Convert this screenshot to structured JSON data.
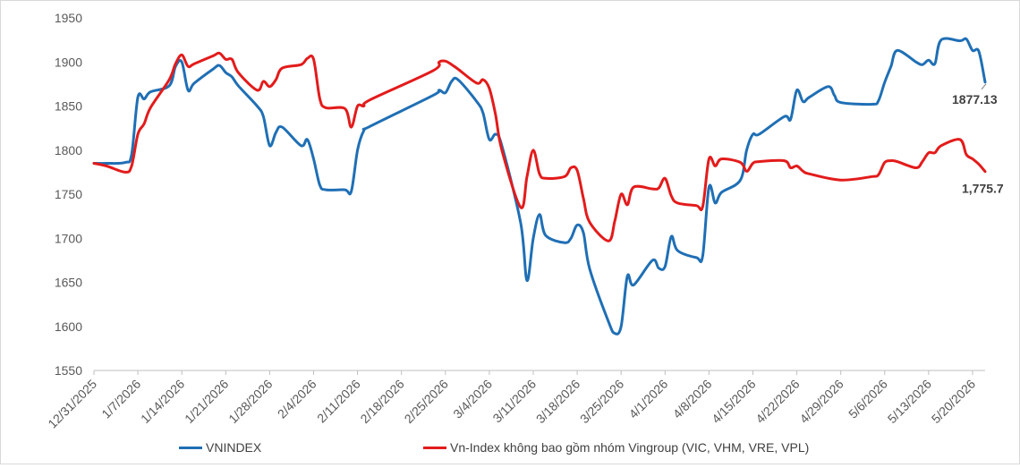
{
  "chart_data": {
    "type": "line",
    "title": "",
    "xlabel": "",
    "ylabel": "",
    "ylim": [
      1550,
      1950
    ],
    "yticks": [
      1550,
      1600,
      1650,
      1700,
      1750,
      1800,
      1850,
      1900,
      1950
    ],
    "xticks": [
      "12/31/2025",
      "1/7/2026",
      "1/14/2026",
      "1/21/2026",
      "1/28/2026",
      "2/4/2026",
      "2/11/2026",
      "2/18/2026",
      "2/25/2026",
      "3/4/2026",
      "3/11/2026",
      "3/18/2026",
      "3/25/2026",
      "4/1/2026",
      "4/8/2026",
      "4/15/2026",
      "4/22/2026",
      "4/29/2026",
      "5/6/2026",
      "5/13/2026",
      "5/20/2026"
    ],
    "grid": false,
    "legend_position": "bottom",
    "series": [
      {
        "name": "VNINDEX",
        "color": "#1f6fb5",
        "end_label": "1877.13",
        "points": [
          [
            "2025-12-31",
            1785
          ],
          [
            "2026-01-02",
            1785
          ],
          [
            "2026-01-05",
            1786
          ],
          [
            "2026-01-06",
            1795
          ],
          [
            "2026-01-07",
            1860
          ],
          [
            "2026-01-08",
            1858
          ],
          [
            "2026-01-09",
            1866
          ],
          [
            "2026-01-12",
            1873
          ],
          [
            "2026-01-13",
            1895
          ],
          [
            "2026-01-14",
            1900
          ],
          [
            "2026-01-15",
            1868
          ],
          [
            "2026-01-16",
            1876
          ],
          [
            "2026-01-19",
            1892
          ],
          [
            "2026-01-20",
            1896
          ],
          [
            "2026-01-21",
            1888
          ],
          [
            "2026-01-22",
            1883
          ],
          [
            "2026-01-23",
            1873
          ],
          [
            "2026-01-26",
            1850
          ],
          [
            "2026-01-27",
            1838
          ],
          [
            "2026-01-28",
            1805
          ],
          [
            "2026-01-29",
            1820
          ],
          [
            "2026-01-30",
            1826
          ],
          [
            "2026-02-02",
            1805
          ],
          [
            "2026-02-03",
            1812
          ],
          [
            "2026-02-04",
            1790
          ],
          [
            "2026-02-05",
            1760
          ],
          [
            "2026-02-06",
            1755
          ],
          [
            "2026-02-09",
            1755
          ],
          [
            "2026-02-10",
            1753
          ],
          [
            "2026-02-11",
            1800
          ],
          [
            "2026-02-12",
            1822
          ],
          [
            "2026-02-13",
            1827
          ],
          [
            "2026-02-23",
            1862
          ],
          [
            "2026-02-24",
            1868
          ],
          [
            "2026-02-25",
            1865
          ],
          [
            "2026-02-26",
            1878
          ],
          [
            "2026-02-27",
            1880
          ],
          [
            "2026-03-02",
            1855
          ],
          [
            "2026-03-03",
            1842
          ],
          [
            "2026-03-04",
            1812
          ],
          [
            "2026-03-05",
            1818
          ],
          [
            "2026-03-06",
            1805
          ],
          [
            "2026-03-09",
            1717
          ],
          [
            "2026-03-10",
            1652
          ],
          [
            "2026-03-11",
            1700
          ],
          [
            "2026-03-12",
            1727
          ],
          [
            "2026-03-13",
            1703
          ],
          [
            "2026-03-16",
            1695
          ],
          [
            "2026-03-17",
            1700
          ],
          [
            "2026-03-18",
            1715
          ],
          [
            "2026-03-19",
            1706
          ],
          [
            "2026-03-20",
            1665
          ],
          [
            "2026-03-23",
            1605
          ],
          [
            "2026-03-24",
            1592
          ],
          [
            "2026-03-25",
            1600
          ],
          [
            "2026-03-26",
            1657
          ],
          [
            "2026-03-27",
            1647
          ],
          [
            "2026-03-30",
            1675
          ],
          [
            "2026-03-31",
            1666
          ],
          [
            "2026-04-01",
            1668
          ],
          [
            "2026-04-02",
            1702
          ],
          [
            "2026-04-03",
            1686
          ],
          [
            "2026-04-06",
            1678
          ],
          [
            "2026-04-07",
            1680
          ],
          [
            "2026-04-08",
            1758
          ],
          [
            "2026-04-09",
            1740
          ],
          [
            "2026-04-10",
            1752
          ],
          [
            "2026-04-13",
            1766
          ],
          [
            "2026-04-14",
            1800
          ],
          [
            "2026-04-15",
            1818
          ],
          [
            "2026-04-16",
            1818
          ],
          [
            "2026-04-20",
            1838
          ],
          [
            "2026-04-21",
            1835
          ],
          [
            "2026-04-22",
            1868
          ],
          [
            "2026-04-23",
            1855
          ],
          [
            "2026-04-24",
            1860
          ],
          [
            "2026-04-27",
            1872
          ],
          [
            "2026-04-28",
            1862
          ],
          [
            "2026-04-29",
            1854
          ],
          [
            "2026-05-04",
            1852
          ],
          [
            "2026-05-05",
            1856
          ],
          [
            "2026-05-06",
            1877
          ],
          [
            "2026-05-07",
            1895
          ],
          [
            "2026-05-08",
            1913
          ],
          [
            "2026-05-11",
            1900
          ],
          [
            "2026-05-12",
            1897
          ],
          [
            "2026-05-13",
            1902
          ],
          [
            "2026-05-14",
            1898
          ],
          [
            "2026-05-15",
            1925
          ],
          [
            "2026-05-18",
            1924
          ],
          [
            "2026-05-19",
            1926
          ],
          [
            "2026-05-20",
            1913
          ],
          [
            "2026-05-21",
            1912
          ],
          [
            "2026-05-22",
            1877.13
          ]
        ]
      },
      {
        "name": "Vn-Index không bao gồm nhóm Vingroup (VIC, VHM, VRE, VPL)",
        "color": "#e31b1b",
        "end_label": "1,775.7",
        "points": [
          [
            "2025-12-31",
            1785
          ],
          [
            "2026-01-02",
            1782
          ],
          [
            "2026-01-05",
            1775
          ],
          [
            "2026-01-06",
            1782
          ],
          [
            "2026-01-07",
            1818
          ],
          [
            "2026-01-08",
            1830
          ],
          [
            "2026-01-09",
            1848
          ],
          [
            "2026-01-12",
            1880
          ],
          [
            "2026-01-13",
            1898
          ],
          [
            "2026-01-14",
            1908
          ],
          [
            "2026-01-15",
            1895
          ],
          [
            "2026-01-16",
            1898
          ],
          [
            "2026-01-19",
            1907
          ],
          [
            "2026-01-20",
            1910
          ],
          [
            "2026-01-21",
            1903
          ],
          [
            "2026-01-22",
            1903
          ],
          [
            "2026-01-23",
            1888
          ],
          [
            "2026-01-26",
            1868
          ],
          [
            "2026-01-27",
            1878
          ],
          [
            "2026-01-28",
            1872
          ],
          [
            "2026-01-29",
            1880
          ],
          [
            "2026-01-30",
            1893
          ],
          [
            "2026-02-02",
            1897
          ],
          [
            "2026-02-03",
            1904
          ],
          [
            "2026-02-04",
            1903
          ],
          [
            "2026-02-05",
            1858
          ],
          [
            "2026-02-06",
            1848
          ],
          [
            "2026-02-09",
            1847
          ],
          [
            "2026-02-10",
            1826
          ],
          [
            "2026-02-11",
            1850
          ],
          [
            "2026-02-12",
            1850
          ],
          [
            "2026-02-13",
            1857
          ],
          [
            "2026-02-23",
            1890
          ],
          [
            "2026-02-24",
            1900
          ],
          [
            "2026-02-25",
            1901
          ],
          [
            "2026-02-26",
            1897
          ],
          [
            "2026-02-27",
            1892
          ],
          [
            "2026-03-02",
            1876
          ],
          [
            "2026-03-03",
            1880
          ],
          [
            "2026-03-04",
            1870
          ],
          [
            "2026-03-05",
            1840
          ],
          [
            "2026-03-06",
            1800
          ],
          [
            "2026-03-09",
            1735
          ],
          [
            "2026-03-10",
            1770
          ],
          [
            "2026-03-11",
            1800
          ],
          [
            "2026-03-12",
            1773
          ],
          [
            "2026-03-13",
            1768
          ],
          [
            "2026-03-16",
            1770
          ],
          [
            "2026-03-17",
            1780
          ],
          [
            "2026-03-18",
            1777
          ],
          [
            "2026-03-19",
            1745
          ],
          [
            "2026-03-20",
            1718
          ],
          [
            "2026-03-23",
            1697
          ],
          [
            "2026-03-24",
            1720
          ],
          [
            "2026-03-25",
            1750
          ],
          [
            "2026-03-26",
            1738
          ],
          [
            "2026-03-27",
            1758
          ],
          [
            "2026-03-30",
            1756
          ],
          [
            "2026-03-31",
            1757
          ],
          [
            "2026-04-01",
            1768
          ],
          [
            "2026-04-02",
            1748
          ],
          [
            "2026-04-03",
            1740
          ],
          [
            "2026-04-06",
            1737
          ],
          [
            "2026-04-07",
            1736
          ],
          [
            "2026-04-08",
            1790
          ],
          [
            "2026-04-09",
            1782
          ],
          [
            "2026-04-10",
            1790
          ],
          [
            "2026-04-13",
            1786
          ],
          [
            "2026-04-14",
            1776
          ],
          [
            "2026-04-15",
            1785
          ],
          [
            "2026-04-16",
            1787
          ],
          [
            "2026-04-20",
            1788
          ],
          [
            "2026-04-21",
            1780
          ],
          [
            "2026-04-22",
            1782
          ],
          [
            "2026-04-23",
            1776
          ],
          [
            "2026-04-24",
            1773
          ],
          [
            "2026-04-29",
            1766
          ],
          [
            "2026-05-04",
            1770
          ],
          [
            "2026-05-05",
            1772
          ],
          [
            "2026-05-06",
            1786
          ],
          [
            "2026-05-07",
            1788
          ],
          [
            "2026-05-08",
            1787
          ],
          [
            "2026-05-11",
            1780
          ],
          [
            "2026-05-12",
            1787
          ],
          [
            "2026-05-13",
            1797
          ],
          [
            "2026-05-14",
            1797
          ],
          [
            "2026-05-15",
            1805
          ],
          [
            "2026-05-18",
            1812
          ],
          [
            "2026-05-19",
            1795
          ],
          [
            "2026-05-20",
            1790
          ],
          [
            "2026-05-21",
            1784
          ],
          [
            "2026-05-22",
            1775.7
          ]
        ]
      }
    ]
  }
}
